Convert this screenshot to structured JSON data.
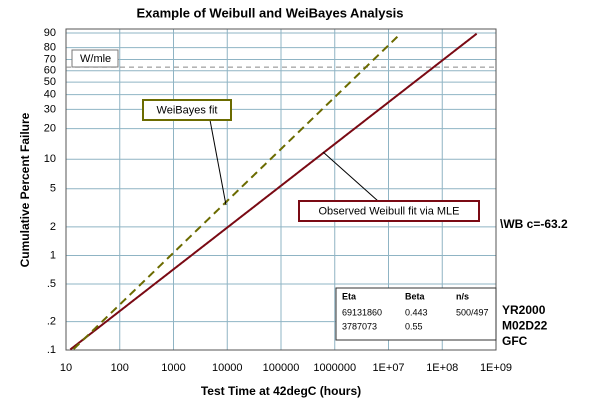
{
  "chart_data": {
    "type": "weibull",
    "title": "Example of Weibull and WeiBayes Analysis",
    "x_label": "Test Time at 42degC (hours)",
    "y_label": "Cumulative Percent Failure",
    "x_scale": "log",
    "y_scale": "weibull",
    "grid": true,
    "xlim": [
      10,
      1000000000
    ],
    "xticks": [
      10,
      100,
      1000,
      10000,
      100000,
      1000000,
      {
        "value": 10000000,
        "label": "1E+07"
      },
      {
        "value": 100000000,
        "label": "1E+08"
      },
      {
        "value": 1000000000,
        "label": "1E+09"
      }
    ],
    "ylim": [
      0.1,
      90
    ],
    "yticks": [
      {
        "value": 0.1,
        "label": ".1"
      },
      {
        "value": 0.2,
        "label": ".2"
      },
      {
        "value": 0.5,
        "label": ".5"
      },
      1,
      2,
      5,
      10,
      20,
      30,
      40,
      50,
      60,
      70,
      80,
      90
    ],
    "eta_line": 63.2,
    "legend_tag": "W/mle",
    "fit_table": {
      "headers": [
        "Eta",
        "Beta",
        "n/s"
      ]
    },
    "fits": [
      {
        "name": "Observed Weibull fit via MLE",
        "color": "#7a0a14",
        "dash": false,
        "eta": 69131860,
        "beta": 0.443,
        "ns": "500/497"
      },
      {
        "name": "WeiBayes fit",
        "color": "#6b6b00",
        "dash": true,
        "eta": 3787073,
        "beta": 0.55
      }
    ],
    "side_note": "\\WB c=-63.2",
    "stamp": [
      "YR2000",
      "M02D22",
      "GFC"
    ]
  }
}
